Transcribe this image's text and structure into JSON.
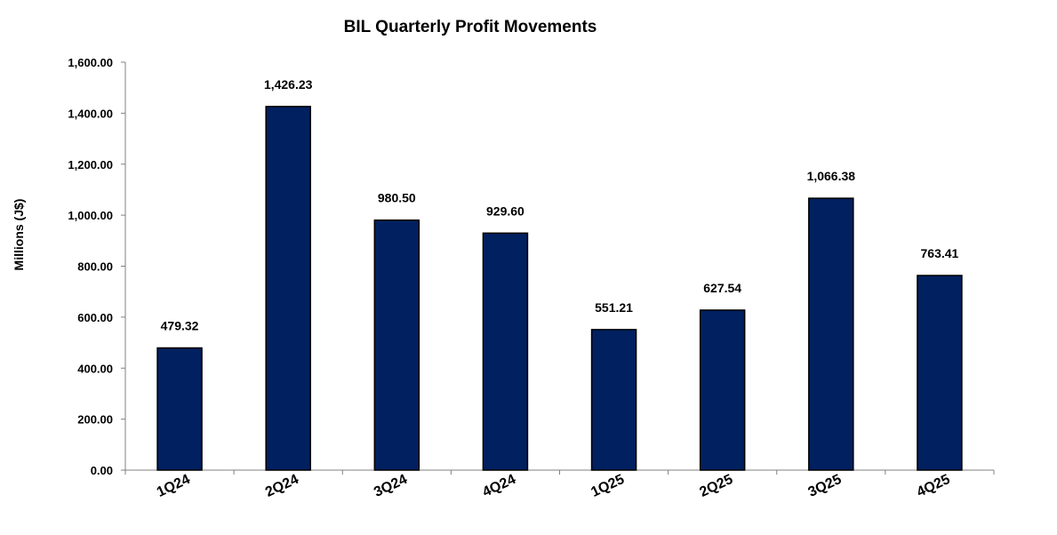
{
  "chart_data": {
    "type": "bar",
    "title": "BIL Quarterly Profit Movements",
    "xlabel": "",
    "ylabel": "Millions  (J$)",
    "categories": [
      "1Q24",
      "2Q24",
      "3Q24",
      "4Q24",
      "1Q25",
      "2Q25",
      "3Q25",
      "4Q25"
    ],
    "values": [
      479.32,
      1426.23,
      980.5,
      929.6,
      551.21,
      627.54,
      1066.38,
      763.41
    ],
    "data_labels": [
      "479.32",
      "1,426.23",
      "980.50",
      "929.60",
      "551.21",
      "627.54",
      "1,066.38",
      "763.41"
    ],
    "ylim": [
      0,
      1600
    ],
    "yticks": [
      0,
      200,
      400,
      600,
      800,
      1000,
      1200,
      1400,
      1600
    ],
    "ytick_labels": [
      "0.00",
      "200.00",
      "400.00",
      "600.00",
      "800.00",
      "1,000.00",
      "1,200.00",
      "1,400.00",
      "1,600.00"
    ],
    "grid": false,
    "legend": "none",
    "bar_color": "#002060",
    "bar_stroke": "#000000"
  }
}
